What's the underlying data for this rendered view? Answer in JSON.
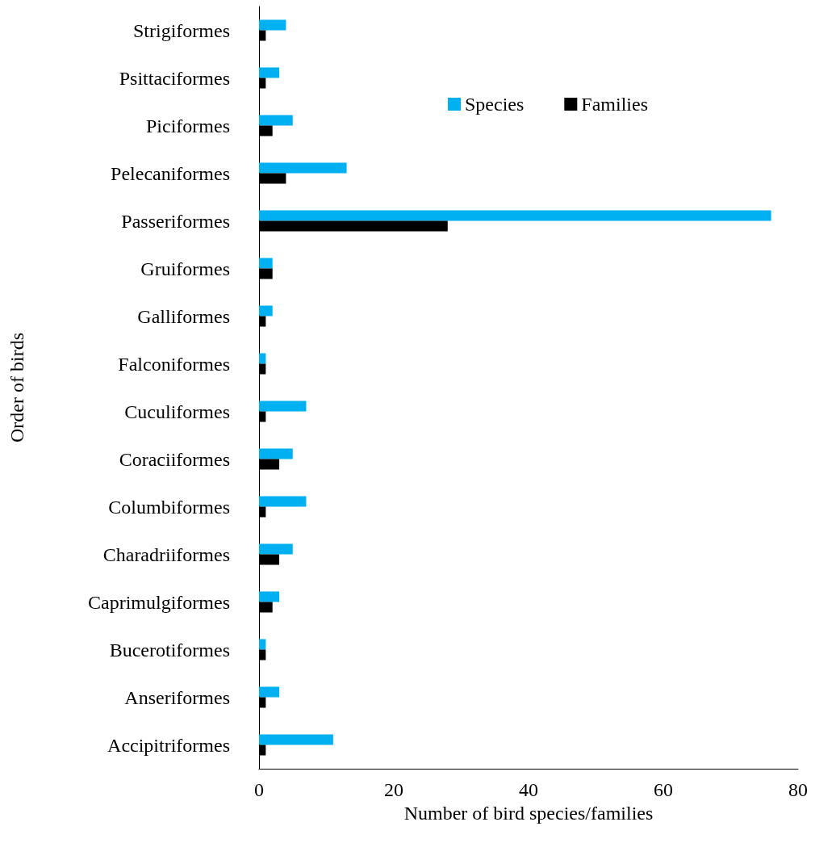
{
  "chart_data": {
    "type": "bar",
    "orientation": "horizontal",
    "xlabel": "Number of bird species/families",
    "ylabel": "Order of birds",
    "categories": [
      "Strigiformes",
      "Psittaciformes",
      "Piciformes",
      "Pelecaniformes",
      "Passeriformes",
      "Gruiformes",
      "Galliformes",
      "Falconiformes",
      "Cuculiformes",
      "Coraciiformes",
      "Columbiformes",
      "Charadriiformes",
      "Caprimulgiformes",
      "Bucerotiformes",
      "Anseriformes",
      "Accipitriformes"
    ],
    "series": [
      {
        "name": "Species",
        "color": "#00b0f0",
        "values": [
          4,
          3,
          5,
          13,
          76,
          2,
          2,
          1,
          7,
          5,
          7,
          5,
          3,
          1,
          3,
          11
        ]
      },
      {
        "name": "Families",
        "color": "#000000",
        "values": [
          1,
          1,
          2,
          4,
          28,
          2,
          1,
          1,
          1,
          3,
          1,
          3,
          2,
          1,
          1,
          1
        ]
      }
    ],
    "xlim": [
      0,
      80
    ],
    "xticks": [
      0,
      20,
      40,
      60,
      80
    ],
    "grid": false,
    "legend": "top right"
  }
}
